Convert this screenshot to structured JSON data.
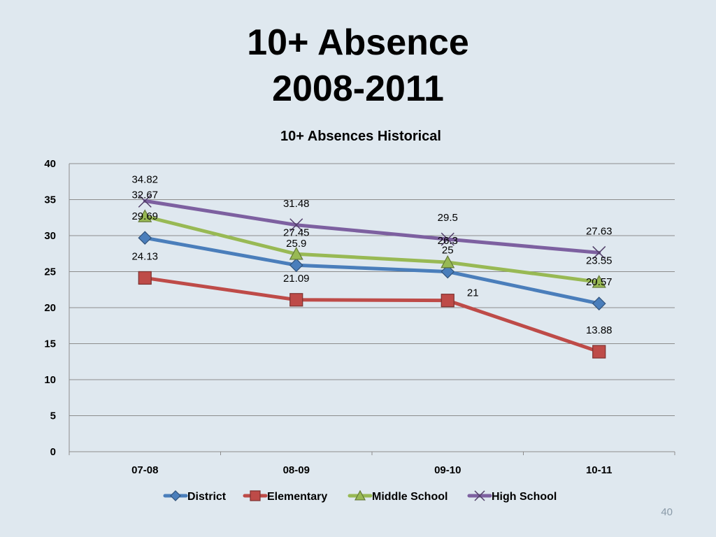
{
  "slide": {
    "title_line1": "10+ Absence",
    "title_line2": "2008-2011",
    "page_number": "40"
  },
  "chart_data": {
    "type": "line",
    "title": "10+ Absences Historical",
    "xlabel": "",
    "ylabel": "",
    "categories": [
      "07-08",
      "08-09",
      "09-10",
      "10-11"
    ],
    "ylim": [
      0,
      40
    ],
    "yticks": [
      0,
      5,
      10,
      15,
      20,
      25,
      30,
      35,
      40
    ],
    "grid": true,
    "legend": "bottom",
    "series": [
      {
        "name": "District",
        "values": [
          29.69,
          25.9,
          25,
          20.57
        ],
        "labels": [
          "29.69",
          "25.9",
          "25",
          "20.57"
        ],
        "color": "#4a7ebb",
        "marker": "diamond"
      },
      {
        "name": "Elementary",
        "values": [
          24.13,
          21.09,
          21,
          13.88
        ],
        "labels": [
          "24.13",
          "21.09",
          "21",
          "13.88"
        ],
        "color": "#be4b48",
        "marker": "square"
      },
      {
        "name": "Middle School",
        "values": [
          32.67,
          27.45,
          26.3,
          23.55
        ],
        "labels": [
          "32.67",
          "27.45",
          "26.3",
          "23.55"
        ],
        "color": "#98b954",
        "marker": "triangle"
      },
      {
        "name": "High School",
        "values": [
          34.82,
          31.48,
          29.5,
          27.63
        ],
        "labels": [
          "34.82",
          "31.48",
          "29.5",
          "27.63"
        ],
        "color": "#7d60a0",
        "marker": "x"
      }
    ]
  }
}
